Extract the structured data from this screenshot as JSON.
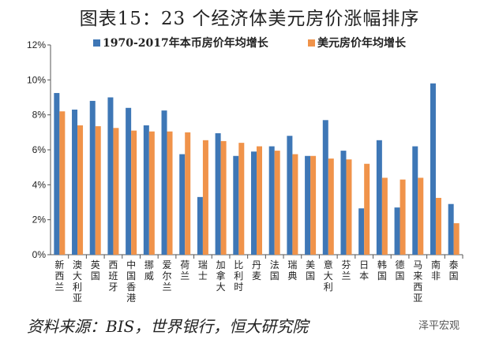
{
  "title": "图表15：23 个经济体美元房价涨幅排序",
  "footer": "资料来源：BIS，世界银行，恒大研究院",
  "watermark": "泽平宏观",
  "chart_data": {
    "type": "bar",
    "title": "图表15：23 个经济体美元房价涨幅排序",
    "ylim": [
      0,
      12
    ],
    "yticks": [
      "0%",
      "2%",
      "4%",
      "6%",
      "8%",
      "10%",
      "12%"
    ],
    "legend_position": "top",
    "grid": false,
    "categories": [
      "新西兰",
      "澳大利亚",
      "英国",
      "西班牙",
      "中国香港",
      "挪威",
      "爱尔兰",
      "荷兰",
      "瑞士",
      "加拿大",
      "比利时",
      "丹麦",
      "法国",
      "瑞典",
      "美国",
      "意大利",
      "芬兰",
      "日本",
      "韩国",
      "德国",
      "马来西亚",
      "南非",
      "泰国"
    ],
    "series": [
      {
        "name": "1970-2017年本币房价年均增长",
        "color": "#3e77b6",
        "values": [
          9.25,
          8.3,
          8.8,
          9.0,
          8.4,
          7.4,
          8.25,
          5.75,
          3.3,
          6.95,
          5.65,
          5.9,
          6.2,
          6.8,
          5.65,
          7.7,
          5.95,
          2.65,
          6.55,
          2.7,
          6.2,
          9.8,
          2.9
        ]
      },
      {
        "name": "美元房价年均增长",
        "color": "#f0934a",
        "values": [
          8.2,
          7.4,
          7.35,
          7.25,
          7.1,
          7.05,
          7.05,
          7.0,
          6.55,
          6.5,
          6.4,
          6.2,
          5.95,
          5.75,
          5.65,
          5.5,
          5.45,
          5.2,
          4.4,
          4.3,
          4.4,
          3.25,
          1.8
        ]
      }
    ]
  }
}
